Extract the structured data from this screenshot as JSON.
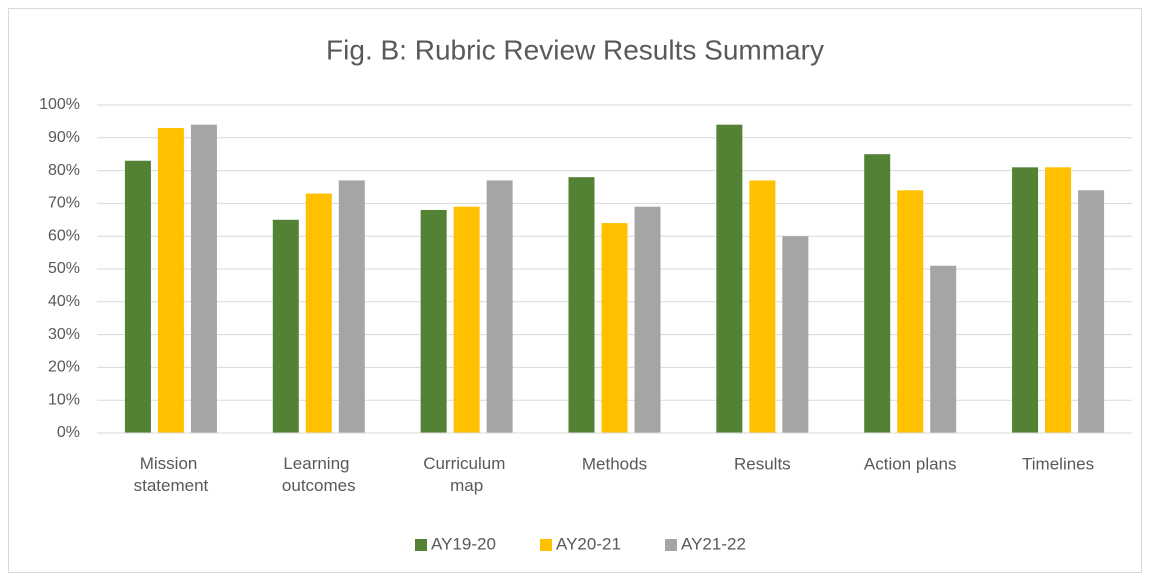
{
  "chart_data": {
    "type": "bar",
    "title": "Fig. B: Rubric Review Results Summary",
    "categories": [
      "Mission statement",
      "Learning outcomes",
      "Curriculum map",
      "Methods",
      "Results",
      "Action plans",
      "Timelines"
    ],
    "series": [
      {
        "name": "AY19-20",
        "color": "#548235",
        "values": [
          83,
          65,
          68,
          78,
          94,
          85,
          81
        ]
      },
      {
        "name": "AY20-21",
        "color": "#ffc000",
        "values": [
          93,
          73,
          69,
          64,
          77,
          74,
          81
        ]
      },
      {
        "name": "AY21-22",
        "color": "#a5a5a5",
        "values": [
          94,
          77,
          77,
          69,
          60,
          51,
          74
        ]
      }
    ],
    "ylim": [
      0,
      100
    ],
    "yticks": [
      {
        "value": 0,
        "label": "0%"
      },
      {
        "value": 10,
        "label": "10%"
      },
      {
        "value": 20,
        "label": "20%"
      },
      {
        "value": 30,
        "label": "30%"
      },
      {
        "value": 40,
        "label": "40%"
      },
      {
        "value": 50,
        "label": "50%"
      },
      {
        "value": 60,
        "label": "60%"
      },
      {
        "value": 70,
        "label": "70%"
      },
      {
        "value": 80,
        "label": "80%"
      },
      {
        "value": 90,
        "label": "90%"
      },
      {
        "value": 100,
        "label": "100%"
      }
    ],
    "grid": true,
    "legend": "bottom"
  }
}
